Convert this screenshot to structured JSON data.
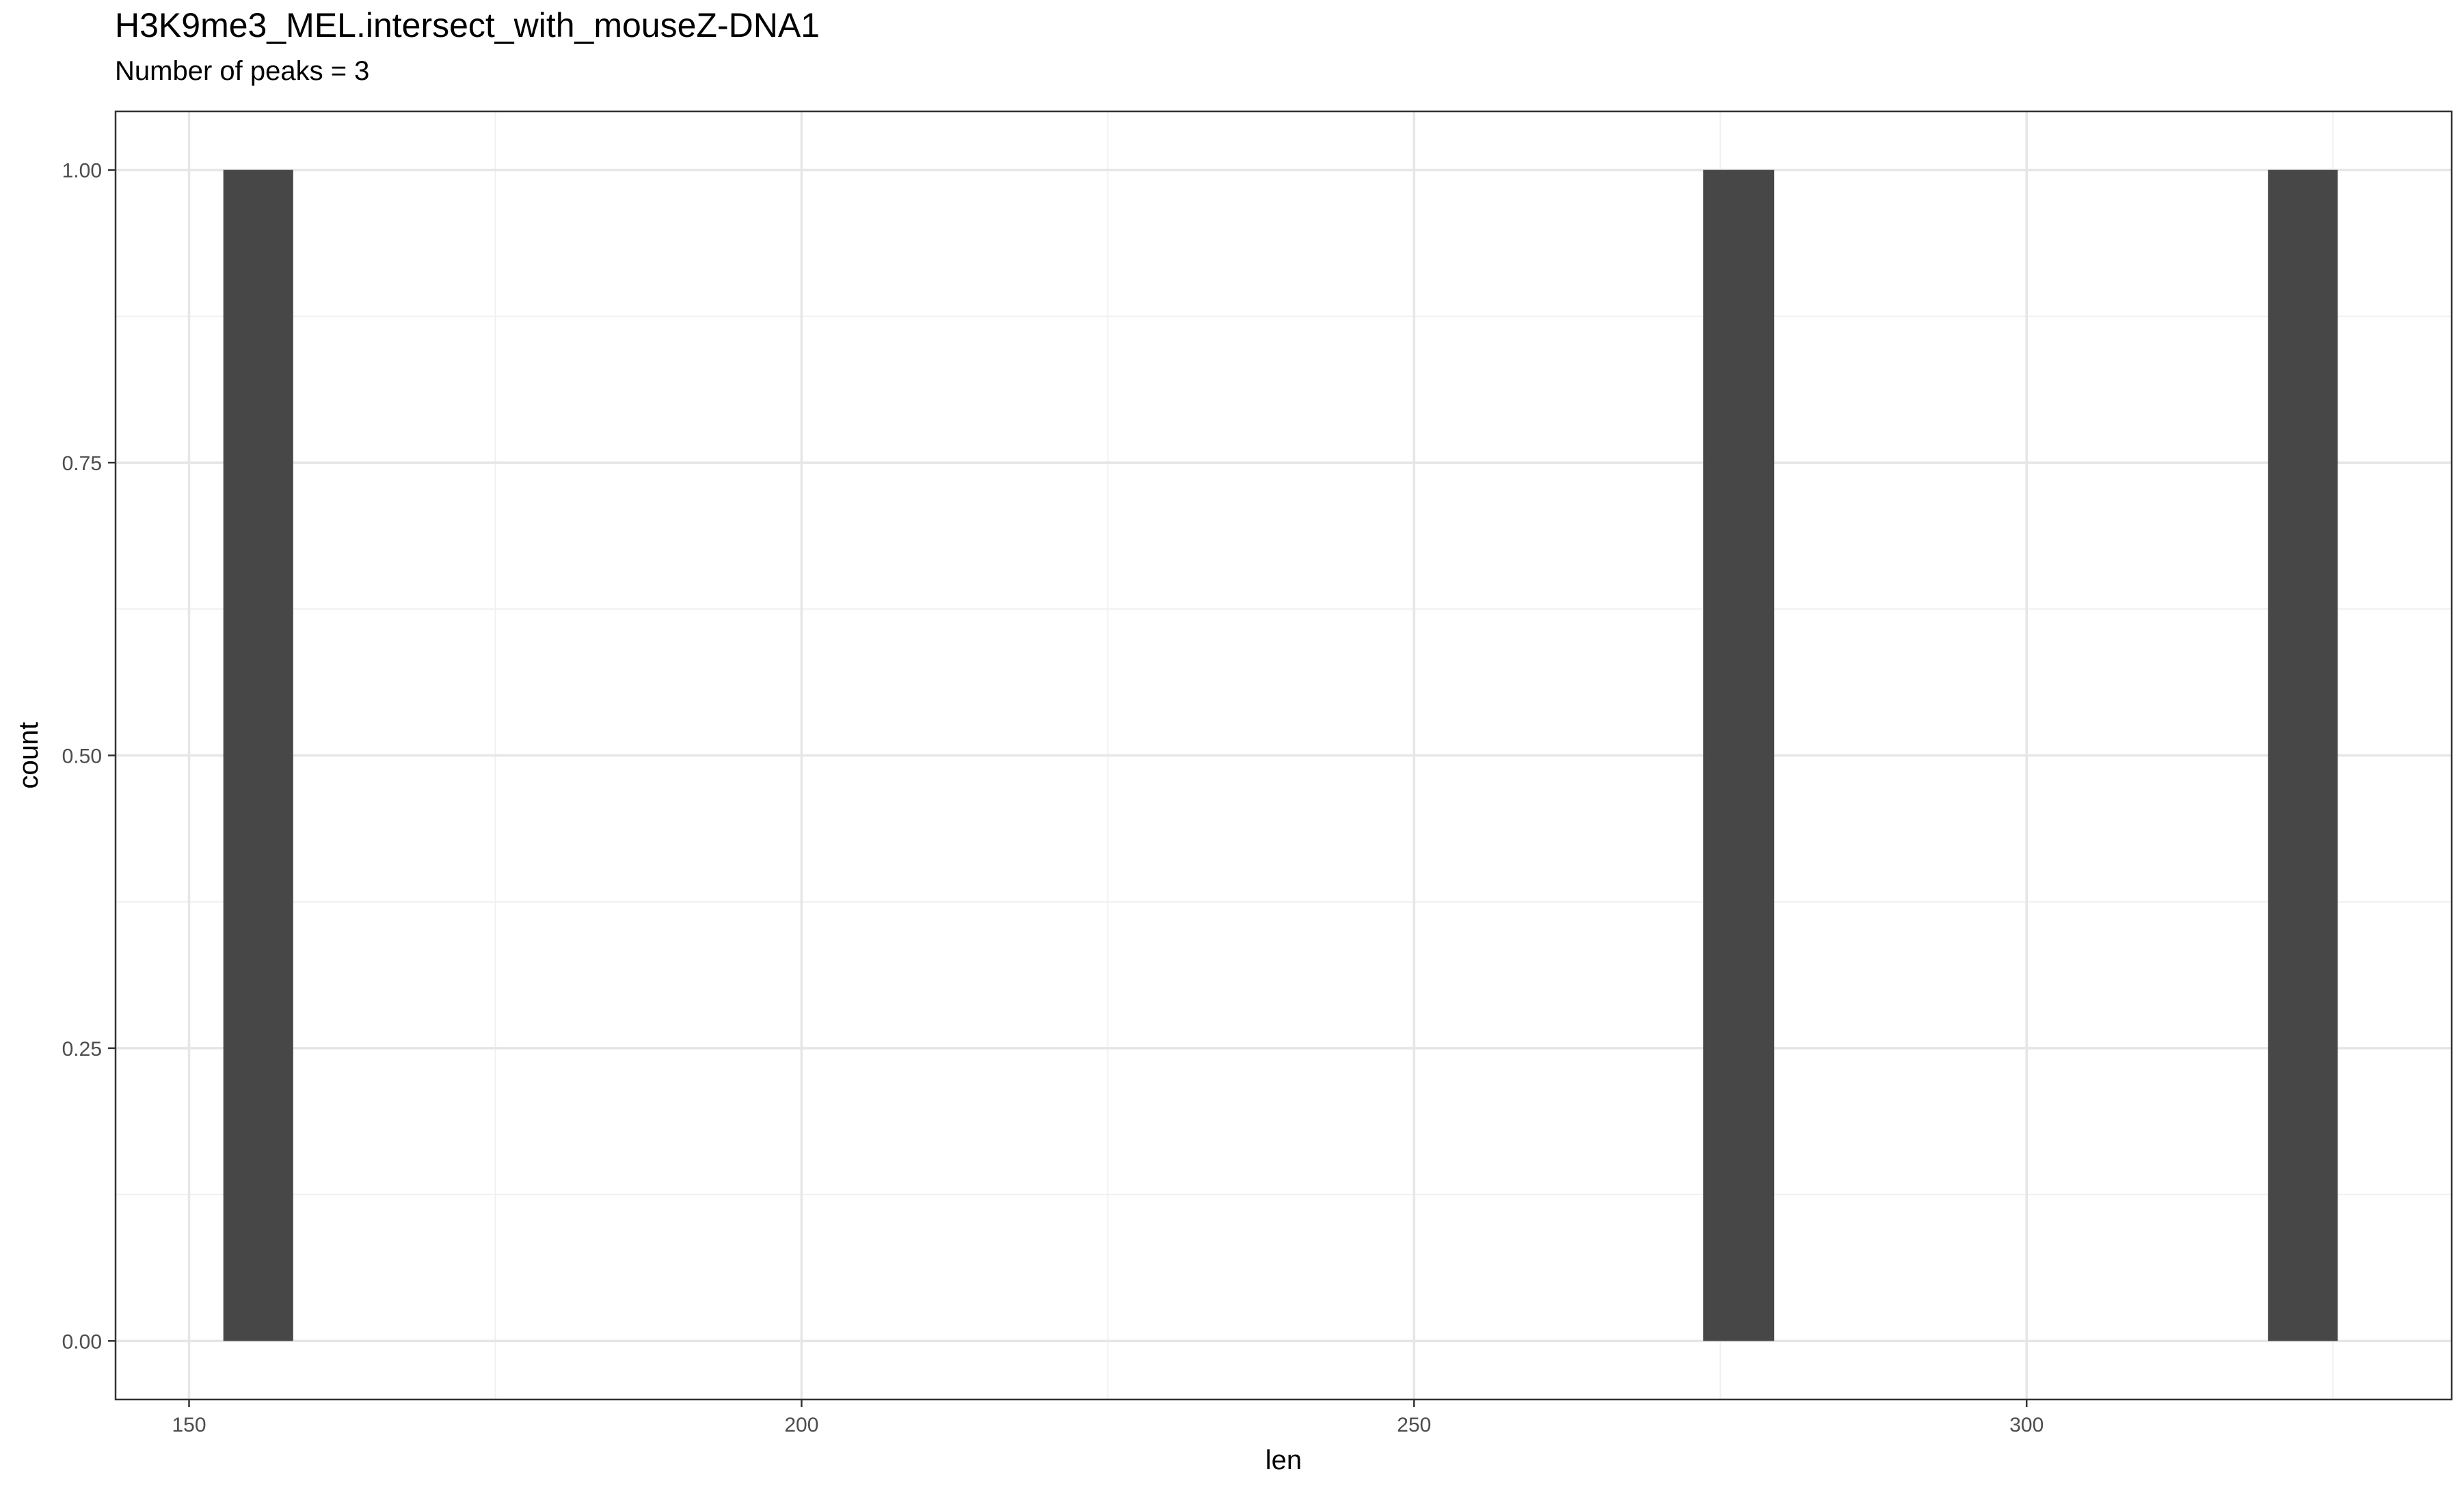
{
  "chart_data": {
    "type": "bar",
    "chart_kind": "histogram",
    "title": "H3K9me3_MEL.intersect_with_mouseZ-DNA1",
    "subtitle": "Number of peaks = 3",
    "xlabel": "len",
    "ylabel": "count",
    "xlim": [
      144,
      334.7
    ],
    "ylim": [
      -0.05,
      1.05
    ],
    "xticks": [
      150,
      200,
      250,
      300
    ],
    "xtick_labels": [
      "150",
      "200",
      "250",
      "300"
    ],
    "xminor": [
      175,
      225,
      275,
      325
    ],
    "yticks": [
      0,
      0.25,
      0.5,
      0.75,
      1.0
    ],
    "ytick_labels": [
      "0.00",
      "0.25",
      "0.50",
      "0.75",
      "1.00"
    ],
    "yminor": [
      0.125,
      0.375,
      0.625,
      0.875
    ],
    "bars": [
      {
        "x_start": 152.8,
        "x_end": 158.5,
        "count": 1
      },
      {
        "x_start": 273.6,
        "x_end": 279.4,
        "count": 1
      },
      {
        "x_start": 319.7,
        "x_end": 325.4,
        "count": 1
      }
    ],
    "grid": true,
    "bar_color": "#474747",
    "grid_major_color": "#e6e6e6",
    "grid_minor_color": "#f0f0f0",
    "panel_border_color": "#333333"
  }
}
